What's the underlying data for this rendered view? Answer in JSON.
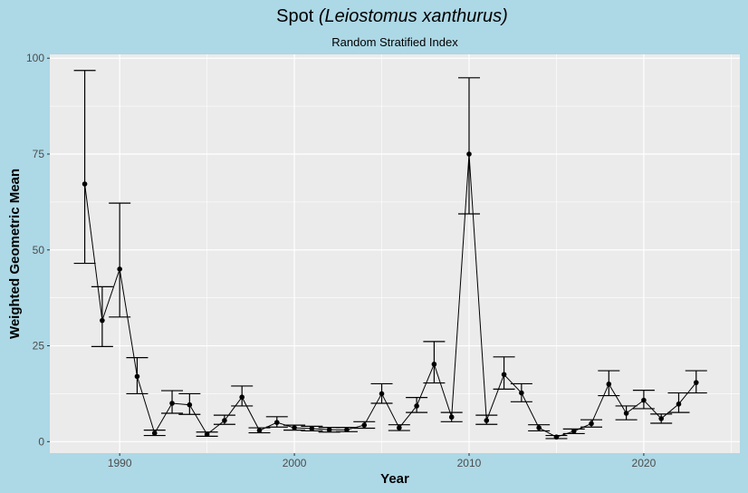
{
  "chart_data": {
    "type": "line",
    "title": "Spot",
    "title_italic": "(Leiostomus xanthurus)",
    "subtitle": "Random Stratified Index",
    "xlabel": "Year",
    "ylabel": "Weighted Geometric Mean",
    "xlim": [
      1986,
      2025.5
    ],
    "ylim": [
      -3,
      101
    ],
    "xticks": [
      1990,
      2000,
      2010,
      2020
    ],
    "yticks": [
      0,
      25,
      50,
      75,
      100
    ],
    "grid": true,
    "legend": "none",
    "x": [
      1988,
      1989,
      1990,
      1991,
      1992,
      1993,
      1994,
      1995,
      1996,
      1997,
      1998,
      1999,
      2000,
      2001,
      2002,
      2003,
      2004,
      2005,
      2006,
      2007,
      2008,
      2009,
      2010,
      2011,
      2012,
      2013,
      2014,
      2015,
      2016,
      2017,
      2018,
      2019,
      2020,
      2021,
      2022,
      2023
    ],
    "y": [
      67.2,
      31.6,
      45.0,
      17.0,
      2.2,
      10.0,
      9.6,
      1.9,
      5.5,
      11.6,
      2.9,
      5.0,
      3.6,
      3.4,
      3.1,
      3.1,
      4.3,
      12.5,
      3.6,
      9.3,
      20.2,
      6.4,
      75.0,
      5.5,
      17.5,
      12.7,
      3.6,
      1.2,
      2.7,
      4.7,
      15.0,
      7.4,
      10.8,
      6.0,
      9.8,
      15.4
    ],
    "lower": [
      46.5,
      24.8,
      32.5,
      12.5,
      1.6,
      7.4,
      7.1,
      1.4,
      4.5,
      9.3,
      2.3,
      3.8,
      3.0,
      2.8,
      2.5,
      2.6,
      3.5,
      10.0,
      2.9,
      7.6,
      15.3,
      5.2,
      59.4,
      4.5,
      13.7,
      10.4,
      2.8,
      0.8,
      2.1,
      3.8,
      12.0,
      5.7,
      8.6,
      4.8,
      7.6,
      12.7
    ],
    "upper": [
      96.8,
      40.4,
      62.2,
      21.9,
      3.0,
      13.3,
      12.5,
      2.5,
      6.9,
      14.5,
      3.6,
      6.5,
      4.3,
      4.0,
      3.7,
      3.7,
      5.2,
      15.1,
      4.4,
      11.5,
      26.1,
      7.6,
      94.9,
      6.9,
      22.1,
      15.1,
      4.4,
      1.6,
      3.3,
      5.7,
      18.5,
      9.3,
      13.4,
      7.2,
      12.7,
      18.5
    ]
  },
  "colors": {
    "background": "#add8e6",
    "panel": "#ebebeb",
    "grid": "#ffffff",
    "line": "#000000"
  }
}
